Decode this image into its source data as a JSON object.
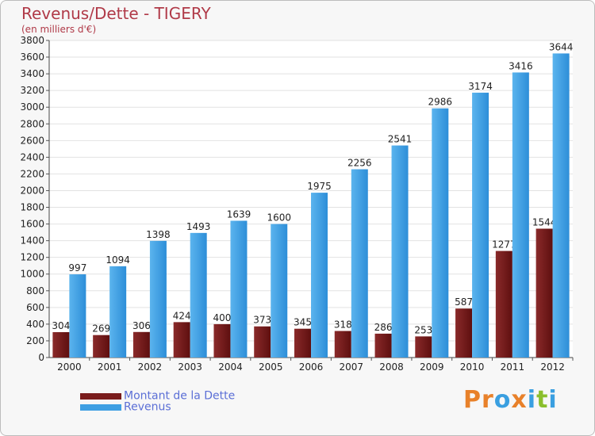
{
  "chart_data": {
    "type": "bar",
    "title": "Revenus/Dette - TIGERY",
    "subtitle": "(en milliers d'€)",
    "xlabel": "",
    "ylabel": "",
    "ylim": [
      0,
      3800
    ],
    "yticks": [
      0,
      200,
      400,
      600,
      800,
      1000,
      1200,
      1400,
      1600,
      1800,
      2000,
      2200,
      2400,
      2600,
      2800,
      3000,
      3200,
      3400,
      3600,
      3800
    ],
    "categories": [
      "2000",
      "2001",
      "2002",
      "2003",
      "2004",
      "2005",
      "2006",
      "2007",
      "2008",
      "2009",
      "2010",
      "2011",
      "2012"
    ],
    "series": [
      {
        "name": "Montant de la Dette",
        "color": "#7a1c1c",
        "values": [
          304,
          269,
          306,
          424,
          400,
          373,
          345,
          318,
          286,
          253,
          587,
          1277,
          1544
        ]
      },
      {
        "name": "Revenus",
        "color": "#3f9fe3",
        "values": [
          997,
          1094,
          1398,
          1493,
          1639,
          1600,
          1975,
          2256,
          2541,
          2986,
          3174,
          3416,
          3644
        ]
      }
    ],
    "legend_position": "bottom-left",
    "grid": true
  },
  "logo": {
    "text": "Proxiti",
    "letters": [
      "P",
      "r",
      "o",
      "x",
      "i",
      "t",
      "i"
    ],
    "colors": [
      "#e8812a",
      "#e8812a",
      "#3a9fe0",
      "#e8812a",
      "#3a9fe0",
      "#8bbf2c",
      "#3a9fe0"
    ]
  }
}
